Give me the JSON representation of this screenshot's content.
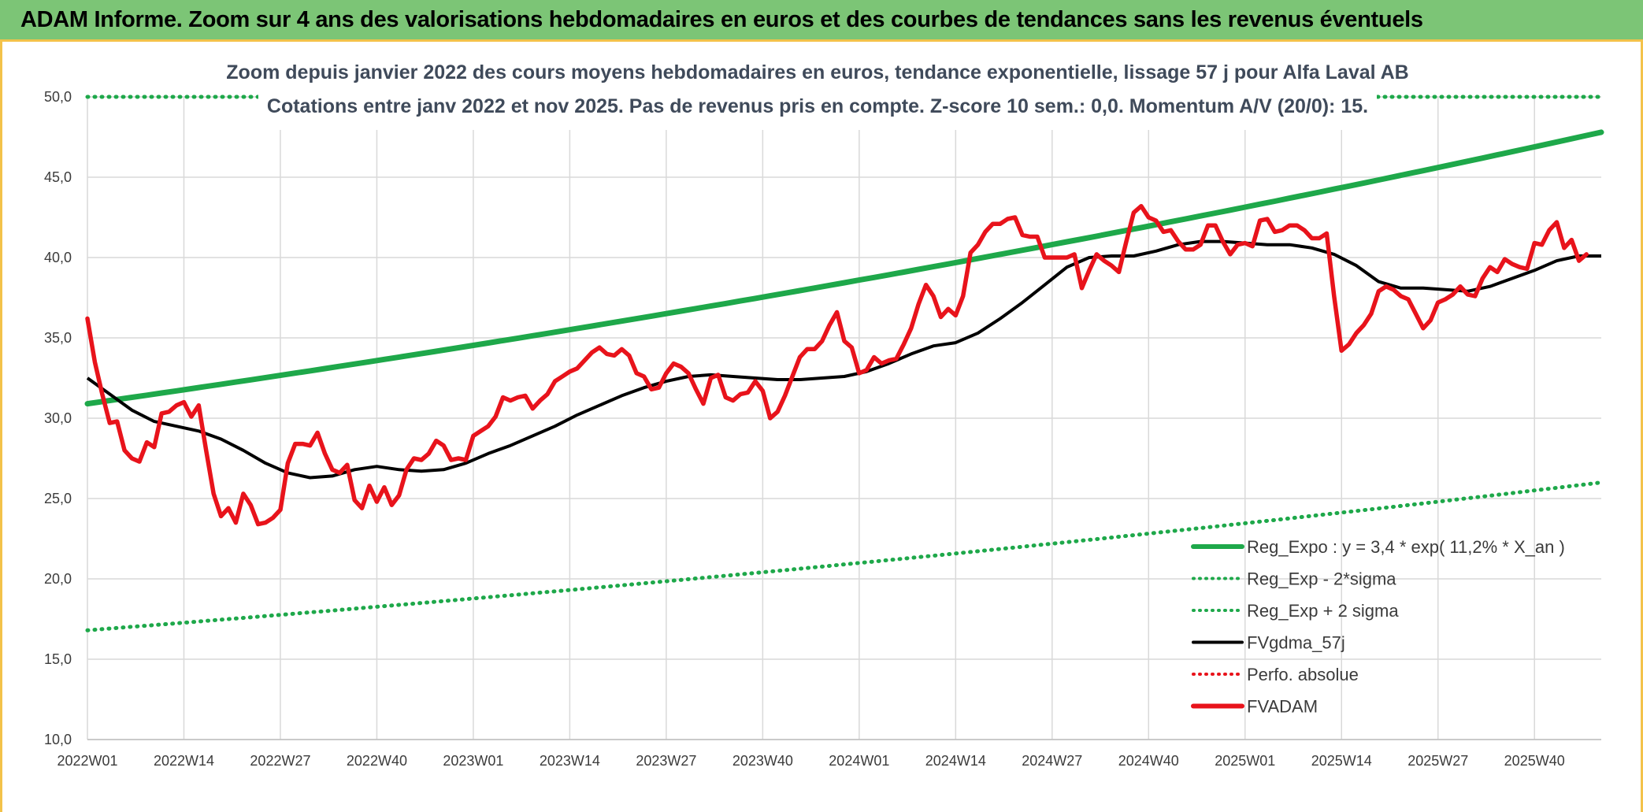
{
  "header": {
    "title": "ADAM Informe. Zoom sur 4 ans des valorisations hebdomadaires en euros et des courbes de tendances sans les revenus éventuels"
  },
  "colors": {
    "banner": "#7cc576",
    "border": "#f3c24a",
    "trend_green": "#1ea84a",
    "fvadam_red": "#e8131b",
    "mma_black": "#000000",
    "grid": "#d9d9d9"
  },
  "chart_data": {
    "type": "line",
    "title_line1": "Zoom depuis janvier 2022 des cours moyens hebdomadaires en euros, tendance exponentielle, lissage 57 j pour Alfa Laval AB",
    "title_line2": "Cotations entre janv 2022 et nov 2025. Pas de revenus pris en compte. Z-score 10 sem.: 0,0. Momentum A/V (20/0): 15.",
    "x_tick_labels": [
      "2022W01",
      "2022W14",
      "2022W27",
      "2022W40",
      "2023W01",
      "2023W14",
      "2023W27",
      "2023W40",
      "2024W01",
      "2024W14",
      "2024W27",
      "2024W40",
      "2025W01",
      "2025W14",
      "2025W27",
      "2025W40"
    ],
    "x_weeks_range": [
      0,
      204
    ],
    "ylim": [
      10,
      50
    ],
    "y_ticks": [
      "10,0",
      "15,0",
      "20,0",
      "25,0",
      "30,0",
      "35,0",
      "40,0",
      "45,0",
      "50,0"
    ],
    "legend": [
      {
        "label": "Reg_Expo : y = 3,4 * exp( 11,2% *  X_an )",
        "style": "solid",
        "color": "#1ea84a"
      },
      {
        "label": "Reg_Exp - 2*sigma",
        "style": "dotted",
        "color": "#1ea84a"
      },
      {
        "label": "Reg_Exp + 2 sigma",
        "style": "dotted",
        "color": "#1ea84a"
      },
      {
        "label": "FVgdma_57j",
        "style": "solid",
        "color": "#000000"
      },
      {
        "label": "Perfo. absolue",
        "style": "dotted",
        "color": "#e8131b"
      },
      {
        "label": "FVADAM",
        "style": "solid",
        "color": "#e8131b"
      }
    ],
    "series": [
      {
        "name": "Reg_Expo",
        "start": 30.9,
        "end": 47.8
      },
      {
        "name": "Reg_Exp - 2*sigma",
        "start": 16.8,
        "end": 26.0
      },
      {
        "name": "Reg_Exp + 2 sigma",
        "start": 50.0,
        "end": 50.0
      },
      {
        "name": "FVgdma_57j",
        "points": [
          [
            0,
            32.5
          ],
          [
            3,
            31.5
          ],
          [
            6,
            30.5
          ],
          [
            9,
            29.8
          ],
          [
            12,
            29.5
          ],
          [
            15,
            29.2
          ],
          [
            18,
            28.7
          ],
          [
            21,
            28.0
          ],
          [
            24,
            27.2
          ],
          [
            27,
            26.6
          ],
          [
            30,
            26.3
          ],
          [
            33,
            26.4
          ],
          [
            36,
            26.8
          ],
          [
            39,
            27.0
          ],
          [
            42,
            26.8
          ],
          [
            45,
            26.7
          ],
          [
            48,
            26.8
          ],
          [
            51,
            27.2
          ],
          [
            54,
            27.8
          ],
          [
            57,
            28.3
          ],
          [
            60,
            28.9
          ],
          [
            63,
            29.5
          ],
          [
            66,
            30.2
          ],
          [
            69,
            30.8
          ],
          [
            72,
            31.4
          ],
          [
            75,
            31.9
          ],
          [
            78,
            32.3
          ],
          [
            81,
            32.6
          ],
          [
            84,
            32.7
          ],
          [
            87,
            32.6
          ],
          [
            90,
            32.5
          ],
          [
            93,
            32.4
          ],
          [
            96,
            32.4
          ],
          [
            99,
            32.5
          ],
          [
            102,
            32.6
          ],
          [
            105,
            32.9
          ],
          [
            108,
            33.4
          ],
          [
            111,
            34.0
          ],
          [
            114,
            34.5
          ],
          [
            117,
            34.7
          ],
          [
            120,
            35.3
          ],
          [
            123,
            36.2
          ],
          [
            126,
            37.2
          ],
          [
            129,
            38.3
          ],
          [
            132,
            39.4
          ],
          [
            135,
            40.0
          ],
          [
            138,
            40.1
          ],
          [
            141,
            40.1
          ],
          [
            144,
            40.4
          ],
          [
            147,
            40.8
          ],
          [
            150,
            41.0
          ],
          [
            153,
            41.0
          ],
          [
            156,
            40.9
          ],
          [
            159,
            40.8
          ],
          [
            162,
            40.8
          ],
          [
            165,
            40.6
          ],
          [
            168,
            40.2
          ],
          [
            171,
            39.5
          ],
          [
            174,
            38.5
          ],
          [
            177,
            38.1
          ],
          [
            180,
            38.1
          ],
          [
            183,
            38.0
          ],
          [
            186,
            37.9
          ],
          [
            189,
            38.2
          ],
          [
            192,
            38.7
          ],
          [
            195,
            39.2
          ],
          [
            198,
            39.8
          ],
          [
            201,
            40.1
          ],
          [
            204,
            40.1
          ]
        ]
      },
      {
        "name": "FVADAM",
        "points": [
          [
            0,
            36.2
          ],
          [
            1,
            33.5
          ],
          [
            2,
            31.5
          ],
          [
            3,
            29.7
          ],
          [
            4,
            29.8
          ],
          [
            5,
            28.0
          ],
          [
            6,
            27.5
          ],
          [
            7,
            27.3
          ],
          [
            8,
            28.5
          ],
          [
            9,
            28.2
          ],
          [
            10,
            30.3
          ],
          [
            11,
            30.4
          ],
          [
            12,
            30.8
          ],
          [
            13,
            31.0
          ],
          [
            14,
            30.1
          ],
          [
            15,
            30.8
          ],
          [
            16,
            28.0
          ],
          [
            17,
            25.3
          ],
          [
            18,
            23.9
          ],
          [
            19,
            24.4
          ],
          [
            20,
            23.5
          ],
          [
            21,
            25.3
          ],
          [
            22,
            24.6
          ],
          [
            23,
            23.4
          ],
          [
            24,
            23.5
          ],
          [
            25,
            23.8
          ],
          [
            26,
            24.3
          ],
          [
            27,
            27.2
          ],
          [
            28,
            28.4
          ],
          [
            29,
            28.4
          ],
          [
            30,
            28.3
          ],
          [
            31,
            29.1
          ],
          [
            32,
            27.8
          ],
          [
            33,
            26.8
          ],
          [
            34,
            26.6
          ],
          [
            35,
            27.1
          ],
          [
            36,
            24.9
          ],
          [
            37,
            24.4
          ],
          [
            38,
            25.8
          ],
          [
            39,
            24.8
          ],
          [
            40,
            25.7
          ],
          [
            41,
            24.6
          ],
          [
            42,
            25.2
          ],
          [
            43,
            26.8
          ],
          [
            44,
            27.5
          ],
          [
            45,
            27.4
          ],
          [
            46,
            27.8
          ],
          [
            47,
            28.6
          ],
          [
            48,
            28.3
          ],
          [
            49,
            27.4
          ],
          [
            50,
            27.5
          ],
          [
            51,
            27.4
          ],
          [
            52,
            28.9
          ],
          [
            53,
            29.2
          ],
          [
            54,
            29.5
          ],
          [
            55,
            30.1
          ],
          [
            56,
            31.3
          ],
          [
            57,
            31.1
          ],
          [
            58,
            31.3
          ],
          [
            59,
            31.4
          ],
          [
            60,
            30.6
          ],
          [
            61,
            31.1
          ],
          [
            62,
            31.5
          ],
          [
            63,
            32.3
          ],
          [
            64,
            32.6
          ],
          [
            65,
            32.9
          ],
          [
            66,
            33.1
          ],
          [
            67,
            33.6
          ],
          [
            68,
            34.1
          ],
          [
            69,
            34.4
          ],
          [
            70,
            34.0
          ],
          [
            71,
            33.9
          ],
          [
            72,
            34.3
          ],
          [
            73,
            33.9
          ],
          [
            74,
            32.8
          ],
          [
            75,
            32.6
          ],
          [
            76,
            31.8
          ],
          [
            77,
            31.9
          ],
          [
            78,
            32.8
          ],
          [
            79,
            33.4
          ],
          [
            80,
            33.2
          ],
          [
            81,
            32.8
          ],
          [
            82,
            31.8
          ],
          [
            83,
            30.9
          ],
          [
            84,
            32.5
          ],
          [
            85,
            32.7
          ],
          [
            86,
            31.3
          ],
          [
            87,
            31.1
          ],
          [
            88,
            31.5
          ],
          [
            89,
            31.6
          ],
          [
            90,
            32.3
          ],
          [
            91,
            31.7
          ],
          [
            92,
            30.0
          ],
          [
            93,
            30.4
          ],
          [
            94,
            31.4
          ],
          [
            95,
            32.6
          ],
          [
            96,
            33.8
          ],
          [
            97,
            34.3
          ],
          [
            98,
            34.3
          ],
          [
            99,
            34.8
          ],
          [
            100,
            35.8
          ],
          [
            101,
            36.6
          ],
          [
            102,
            34.8
          ],
          [
            103,
            34.4
          ],
          [
            104,
            32.8
          ],
          [
            105,
            33.0
          ],
          [
            106,
            33.8
          ],
          [
            107,
            33.4
          ],
          [
            108,
            33.6
          ],
          [
            109,
            33.7
          ],
          [
            110,
            34.6
          ],
          [
            111,
            35.6
          ],
          [
            112,
            37.1
          ],
          [
            113,
            38.3
          ],
          [
            114,
            37.6
          ],
          [
            115,
            36.3
          ],
          [
            116,
            36.8
          ],
          [
            117,
            36.4
          ],
          [
            118,
            37.6
          ],
          [
            119,
            40.3
          ],
          [
            120,
            40.8
          ],
          [
            121,
            41.6
          ],
          [
            122,
            42.1
          ],
          [
            123,
            42.1
          ],
          [
            124,
            42.4
          ],
          [
            125,
            42.5
          ],
          [
            126,
            41.4
          ],
          [
            127,
            41.3
          ],
          [
            128,
            41.3
          ],
          [
            129,
            40.0
          ],
          [
            130,
            40.0
          ],
          [
            131,
            40.0
          ],
          [
            132,
            40.0
          ],
          [
            133,
            40.2
          ],
          [
            134,
            38.1
          ],
          [
            135,
            39.2
          ],
          [
            136,
            40.2
          ],
          [
            137,
            39.8
          ],
          [
            138,
            39.5
          ],
          [
            139,
            39.1
          ],
          [
            140,
            41.0
          ],
          [
            141,
            42.8
          ],
          [
            142,
            43.2
          ],
          [
            143,
            42.5
          ],
          [
            144,
            42.3
          ],
          [
            145,
            41.6
          ],
          [
            146,
            41.7
          ],
          [
            147,
            41.0
          ],
          [
            148,
            40.5
          ],
          [
            149,
            40.5
          ],
          [
            150,
            40.8
          ],
          [
            151,
            42.0
          ],
          [
            152,
            42.0
          ],
          [
            153,
            41.0
          ],
          [
            154,
            40.2
          ],
          [
            155,
            40.8
          ],
          [
            156,
            40.9
          ],
          [
            157,
            40.7
          ],
          [
            158,
            42.3
          ],
          [
            159,
            42.4
          ],
          [
            160,
            41.6
          ],
          [
            161,
            41.7
          ],
          [
            162,
            42.0
          ],
          [
            163,
            42.0
          ],
          [
            164,
            41.7
          ],
          [
            165,
            41.2
          ],
          [
            166,
            41.2
          ],
          [
            167,
            41.5
          ],
          [
            168,
            37.6
          ],
          [
            169,
            34.2
          ],
          [
            170,
            34.6
          ],
          [
            171,
            35.3
          ],
          [
            172,
            35.8
          ],
          [
            173,
            36.5
          ],
          [
            174,
            37.9
          ],
          [
            175,
            38.2
          ],
          [
            176,
            38.0
          ],
          [
            177,
            37.6
          ],
          [
            178,
            37.4
          ],
          [
            179,
            36.5
          ],
          [
            180,
            35.6
          ],
          [
            181,
            36.1
          ],
          [
            182,
            37.2
          ],
          [
            183,
            37.4
          ],
          [
            184,
            37.7
          ],
          [
            185,
            38.2
          ],
          [
            186,
            37.7
          ],
          [
            187,
            37.6
          ],
          [
            188,
            38.7
          ],
          [
            189,
            39.4
          ],
          [
            190,
            39.1
          ],
          [
            191,
            39.9
          ],
          [
            192,
            39.6
          ],
          [
            193,
            39.4
          ],
          [
            194,
            39.3
          ],
          [
            195,
            40.9
          ],
          [
            196,
            40.8
          ],
          [
            197,
            41.7
          ],
          [
            198,
            42.2
          ],
          [
            199,
            40.6
          ],
          [
            200,
            41.1
          ],
          [
            201,
            39.8
          ],
          [
            202,
            40.2
          ]
        ]
      }
    ]
  }
}
